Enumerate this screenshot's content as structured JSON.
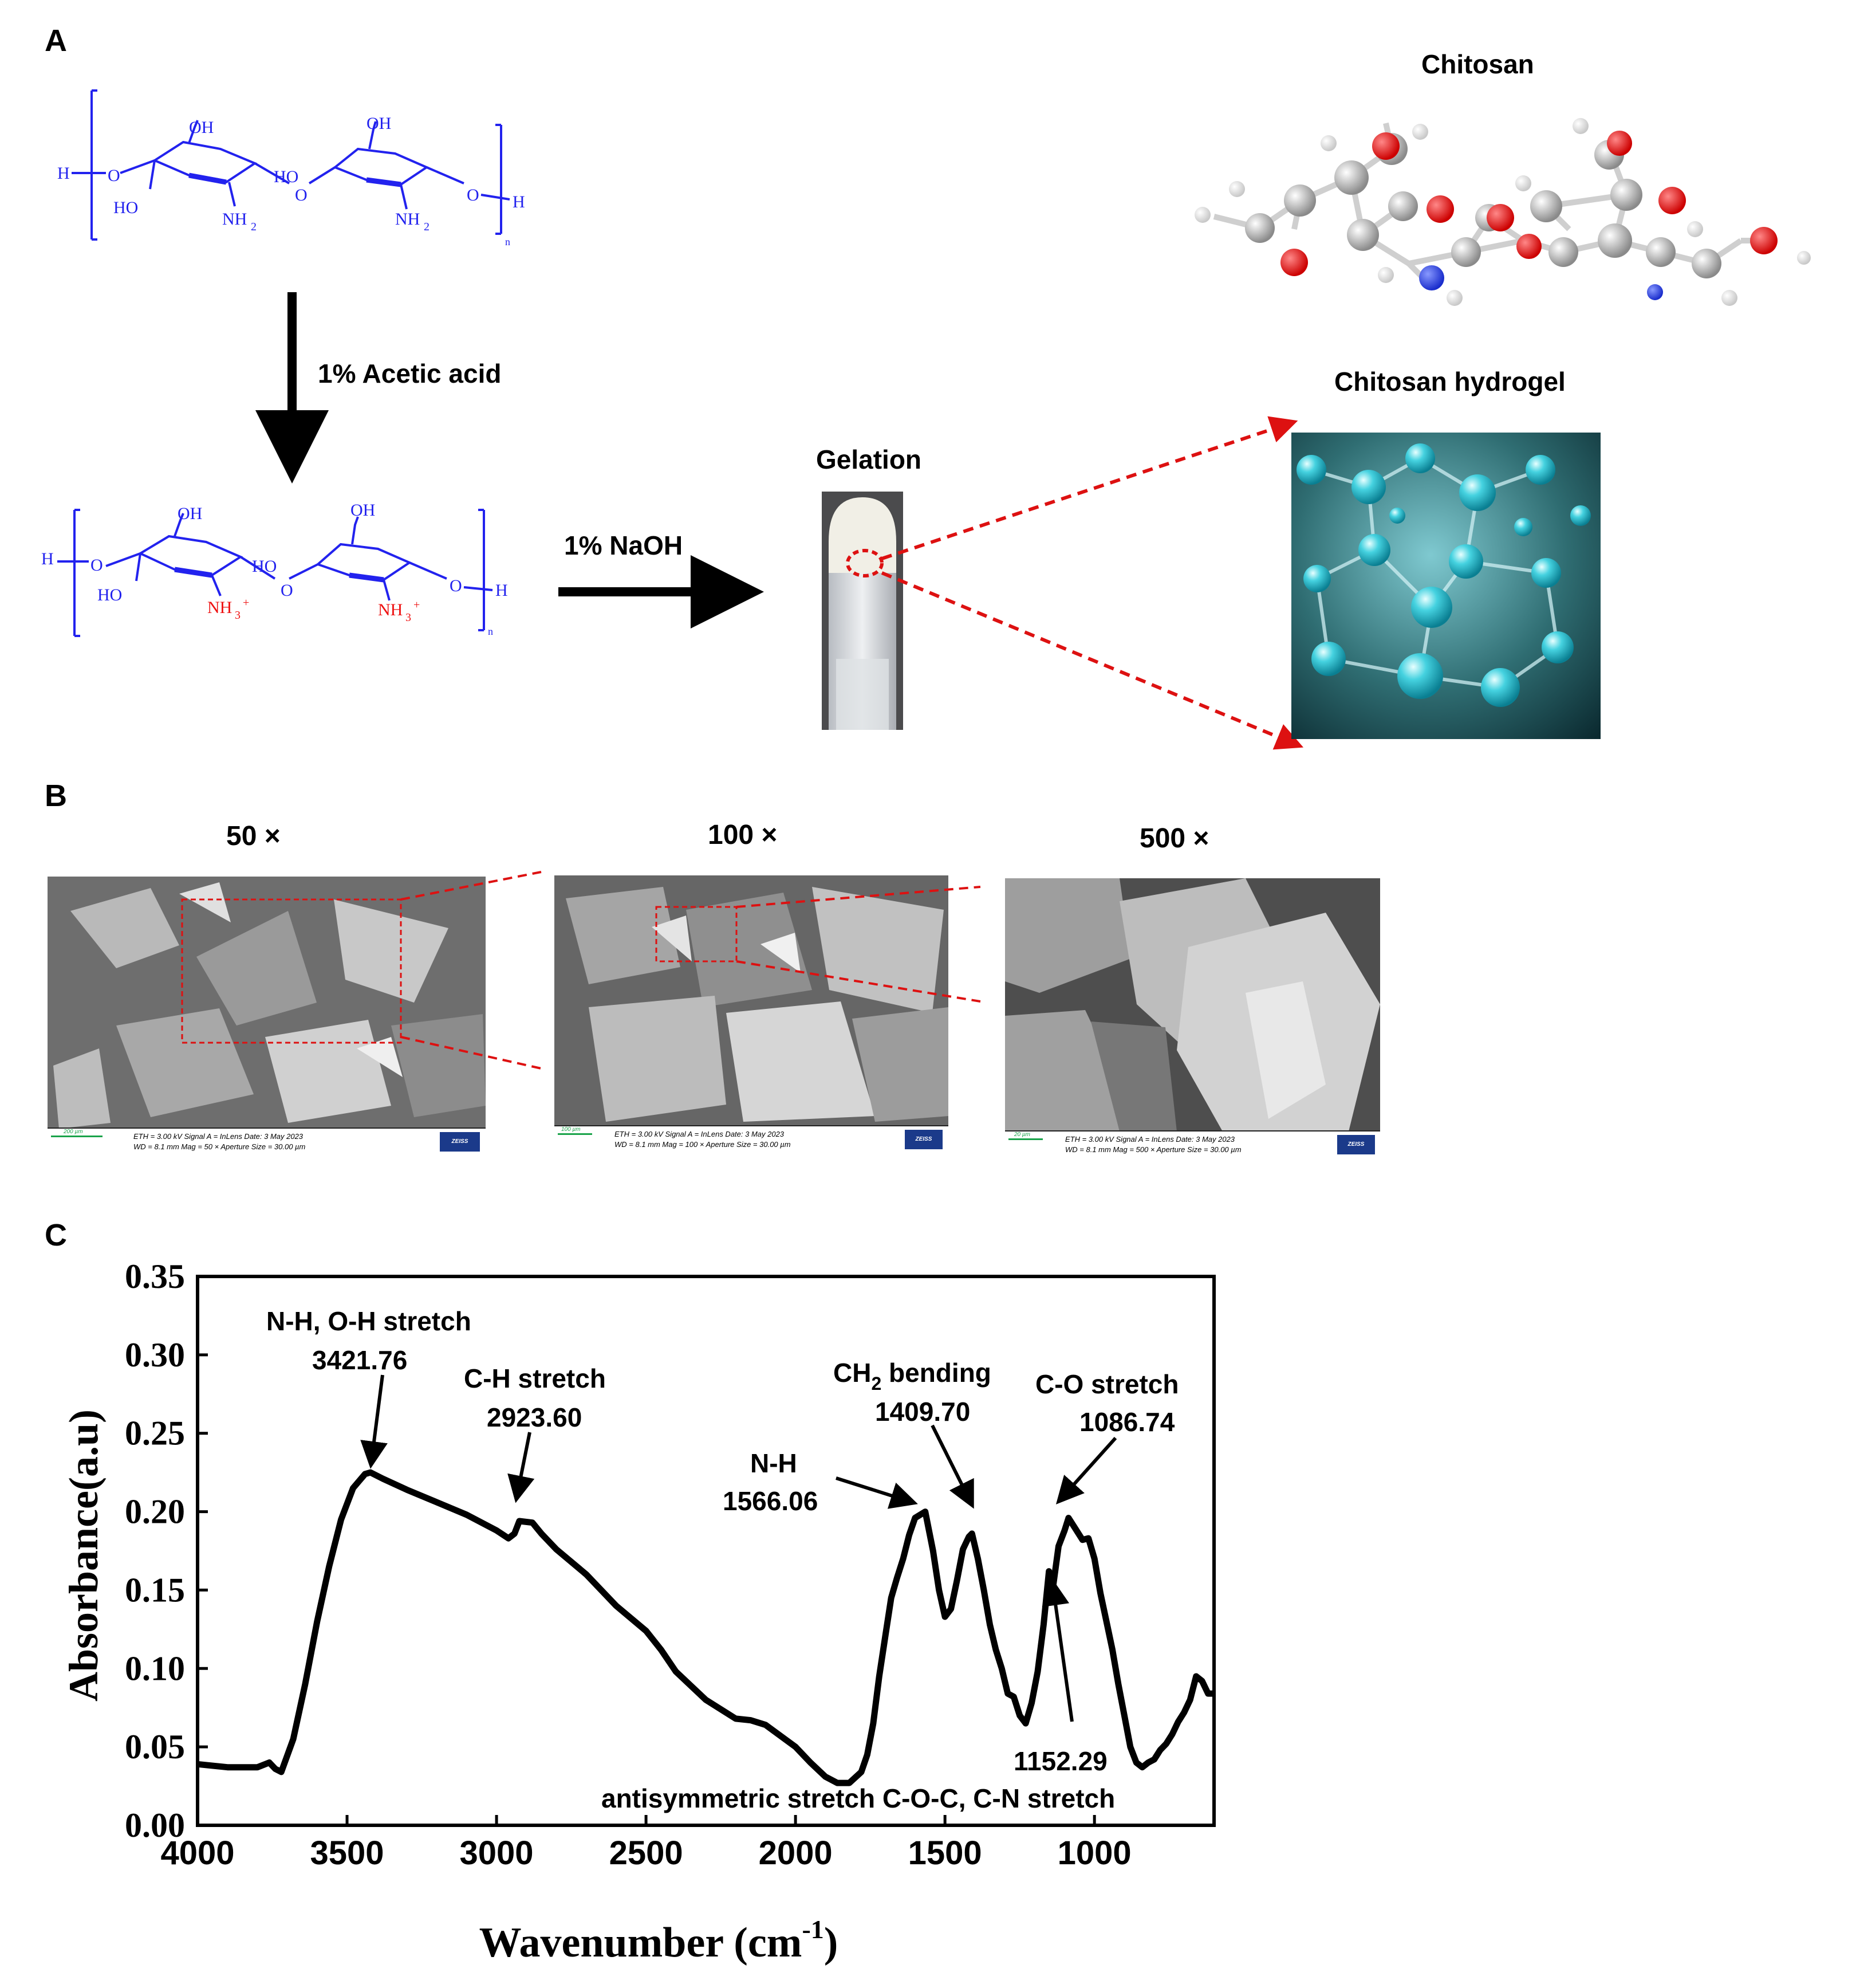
{
  "panelA": {
    "letter": "A",
    "molecule_title": "Chitosan",
    "hydrogel_title": "Chitosan hydrogel",
    "gelation_label": "Gelation",
    "step1_reagent": "1% Acetic acid",
    "step2_reagent": "1% NaOH",
    "structure_top": {
      "H_left": "H",
      "O_left": "O",
      "OH1": "OH",
      "OH2": "OH",
      "HO1": "HO",
      "HO2": "HO",
      "NH2_1": "NH",
      "NH2_2": "NH",
      "sub2": "2",
      "O_mid": "O",
      "O_right": "O",
      "H_right": "H",
      "n": "n"
    },
    "structure_bottom": {
      "H_left": "H",
      "O_left": "O",
      "OH1": "OH",
      "OH2": "OH",
      "HO1": "HO",
      "HO2": "HO",
      "NH3_1": "NH",
      "NH3_2": "NH",
      "sub3": "3",
      "plus": "+",
      "O_mid": "O",
      "O_right": "O",
      "H_right": "H",
      "n": "n"
    },
    "colors": {
      "structure": "#2222ee",
      "charged": "#ee1111",
      "arrow_dashed": "#dd1111"
    }
  },
  "panelB": {
    "letter": "B",
    "images": [
      {
        "mag_label": "50 ×",
        "scale_text": "200 µm",
        "line1": "ETH =  3.00 kV   Signal A = InLens   Date: 3 May 2023",
        "line2": "WD =  8.1 mm    Mag =  50 ×     Aperture Size = 30.00  µm",
        "logo": "ZEISS"
      },
      {
        "mag_label": "100 ×",
        "scale_text": "100 µm",
        "line1": "ETH =  3.00 kV   Signal A = InLens   Date: 3 May 2023",
        "line2": "WD =  8.1 mm    Mag = 100 ×     Aperture Size = 30.00  µm",
        "logo": "ZEISS"
      },
      {
        "mag_label": "500 ×",
        "scale_text": "20 µm",
        "line1": "ETH =  3.00 kV   Signal A = InLens   Date: 3 May 2023",
        "line2": "WD =  8.1 mm    Mag = 500 ×     Aperture Size = 30.00  µm",
        "logo": "ZEISS"
      }
    ]
  },
  "panelC": {
    "letter": "C"
  },
  "chart_data": {
    "type": "line",
    "xlabel_main": "Wavenumber (cm",
    "xlabel_sup": "-1",
    "xlabel_close": ")",
    "ylabel": "Absorbance(a.u)",
    "xlim": [
      4000,
      600
    ],
    "ylim": [
      0,
      0.35
    ],
    "xticks": [
      4000,
      3500,
      3000,
      2500,
      2000,
      1500,
      1000
    ],
    "xtick_labels": [
      "4000",
      "3500",
      "3000",
      "2500",
      "2000",
      "1500",
      "1000"
    ],
    "yticks": [
      0.0,
      0.05,
      0.1,
      0.15,
      0.2,
      0.25,
      0.3,
      0.35
    ],
    "ytick_labels": [
      "0.00",
      "0.05",
      "0.10",
      "0.15",
      "0.20",
      "0.25",
      "0.30",
      "0.35"
    ],
    "x": [
      4000,
      3900,
      3800,
      3760,
      3740,
      3720,
      3680,
      3640,
      3600,
      3560,
      3520,
      3480,
      3440,
      3421.76,
      3380,
      3300,
      3200,
      3100,
      3000,
      2960,
      2940,
      2923.6,
      2880,
      2850,
      2800,
      2700,
      2600,
      2500,
      2450,
      2400,
      2300,
      2200,
      2150,
      2100,
      2000,
      1950,
      1900,
      1860,
      1820,
      1780,
      1760,
      1740,
      1720,
      1700,
      1680,
      1660,
      1640,
      1620,
      1600,
      1566.06,
      1540,
      1520,
      1500,
      1480,
      1460,
      1440,
      1420,
      1409.7,
      1390,
      1370,
      1350,
      1330,
      1310,
      1290,
      1270,
      1250,
      1230,
      1210,
      1190,
      1170,
      1152.29,
      1140,
      1120,
      1100,
      1086.74,
      1060,
      1040,
      1020,
      1000,
      980,
      960,
      940,
      920,
      900,
      880,
      860,
      840,
      820,
      800,
      780,
      760,
      740,
      720,
      700,
      680,
      660,
      640,
      620,
      600
    ],
    "y": [
      0.039,
      0.037,
      0.037,
      0.04,
      0.036,
      0.034,
      0.055,
      0.09,
      0.13,
      0.165,
      0.195,
      0.215,
      0.224,
      0.225,
      0.221,
      0.214,
      0.206,
      0.198,
      0.188,
      0.183,
      0.186,
      0.194,
      0.193,
      0.186,
      0.176,
      0.16,
      0.14,
      0.124,
      0.112,
      0.098,
      0.08,
      0.068,
      0.067,
      0.064,
      0.05,
      0.04,
      0.031,
      0.027,
      0.027,
      0.034,
      0.045,
      0.065,
      0.095,
      0.12,
      0.145,
      0.158,
      0.17,
      0.185,
      0.196,
      0.2,
      0.175,
      0.15,
      0.133,
      0.138,
      0.156,
      0.176,
      0.184,
      0.186,
      0.17,
      0.15,
      0.128,
      0.112,
      0.1,
      0.084,
      0.082,
      0.07,
      0.065,
      0.078,
      0.098,
      0.128,
      0.162,
      0.15,
      0.178,
      0.188,
      0.196,
      0.188,
      0.182,
      0.183,
      0.17,
      0.148,
      0.13,
      0.112,
      0.09,
      0.07,
      0.05,
      0.04,
      0.037,
      0.04,
      0.042,
      0.048,
      0.052,
      0.058,
      0.066,
      0.072,
      0.08,
      0.095,
      0.092,
      0.084,
      0.084
    ],
    "annotations": [
      {
        "label": "N-H, O-H stretch",
        "value": "3421.76"
      },
      {
        "label": "C-H stretch",
        "value": "2923.60"
      },
      {
        "label": "N-H",
        "value": "1566.06"
      },
      {
        "label_pre": "CH",
        "label_sub": "2",
        "label_post": " bending",
        "value": "1409.70"
      },
      {
        "label": "C-O stretch",
        "value": "1086.74"
      },
      {
        "value": "1152.29",
        "label": "antisymmetric stretch C-O-C, C-N stretch"
      }
    ],
    "grid": false,
    "legend": "none"
  }
}
